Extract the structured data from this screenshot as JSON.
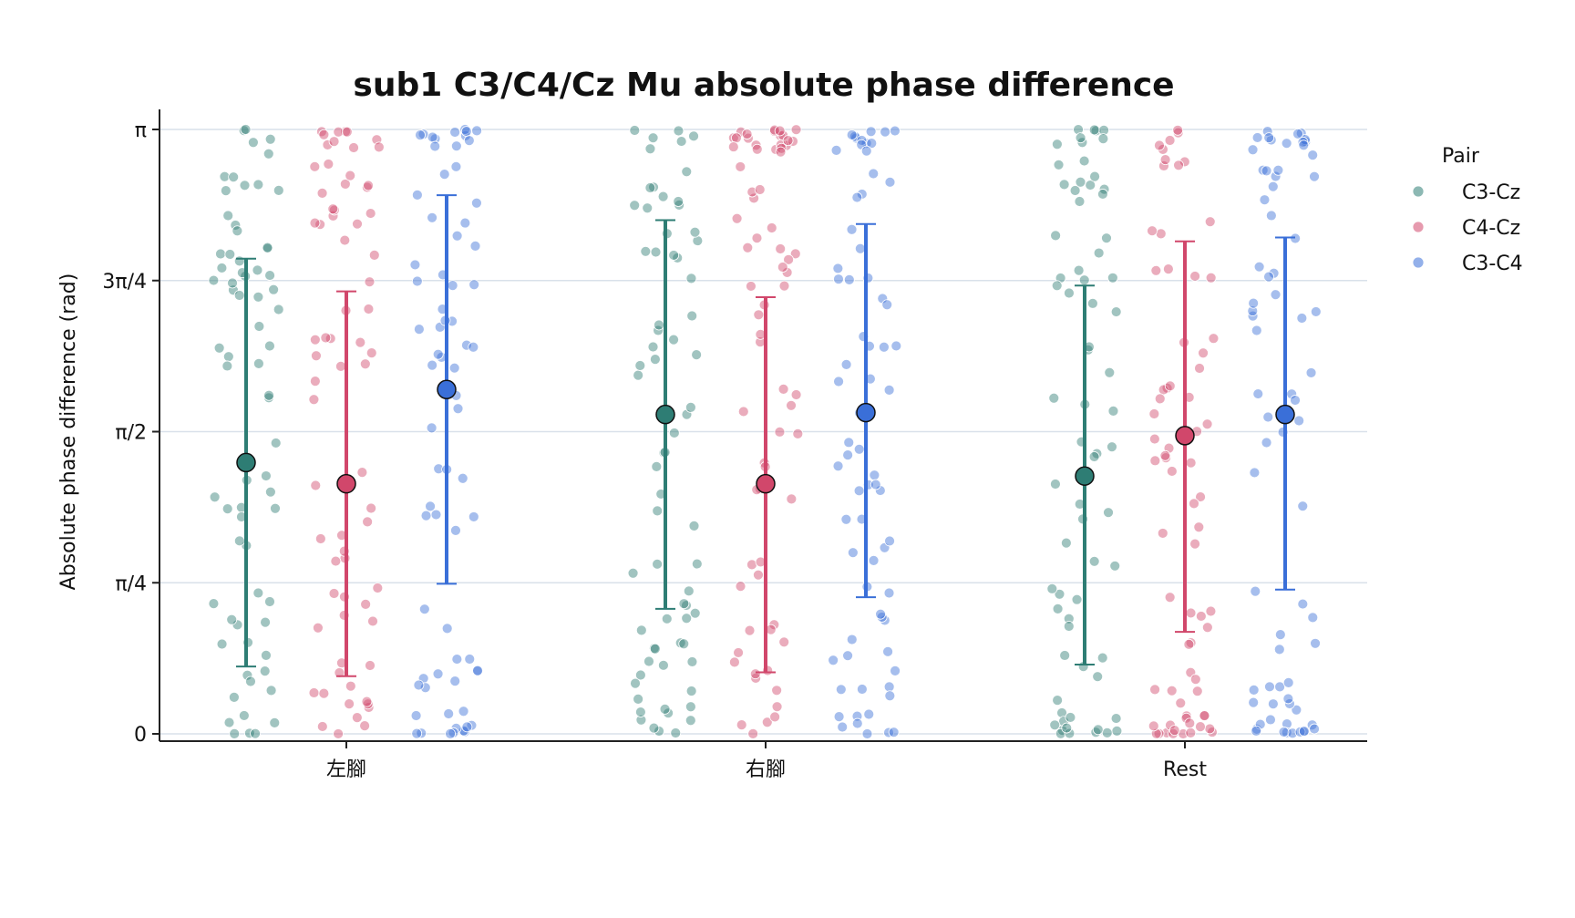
{
  "chart_data": {
    "type": "scatter",
    "title": "sub1 C3/C4/Cz Mu absolute phase difference",
    "xlabel": "",
    "ylabel": "Absolute phase difference (rad)",
    "categories": [
      "左腳",
      "右腳",
      "Rest"
    ],
    "ylim": [
      0,
      3.1416
    ],
    "yticks": [
      {
        "value": 0,
        "label": "0"
      },
      {
        "value": 0.7854,
        "label": "π/4"
      },
      {
        "value": 1.5708,
        "label": "π/2"
      },
      {
        "value": 2.3562,
        "label": "3π/4"
      },
      {
        "value": 3.1416,
        "label": "π"
      }
    ],
    "grid": "horizontal",
    "legend": {
      "title": "Pair",
      "placement": "outside-right"
    },
    "series": [
      {
        "name": "C3-Cz",
        "color": "#2e7d74",
        "mean": [
          1.41,
          1.66,
          1.34
        ],
        "error_low": [
          0.35,
          0.65,
          0.36
        ],
        "error_high": [
          2.47,
          2.67,
          2.33
        ]
      },
      {
        "name": "C4-Cz",
        "color": "#d1476b",
        "mean": [
          1.3,
          1.3,
          1.55
        ],
        "error_low": [
          0.3,
          0.32,
          0.53
        ],
        "error_high": [
          2.3,
          2.27,
          2.56
        ]
      },
      {
        "name": "C3-C4",
        "color": "#3a6fd8",
        "mean": [
          1.79,
          1.67,
          1.66
        ],
        "error_low": [
          0.78,
          0.71,
          0.75
        ],
        "error_high": [
          2.8,
          2.65,
          2.58
        ]
      }
    ]
  }
}
